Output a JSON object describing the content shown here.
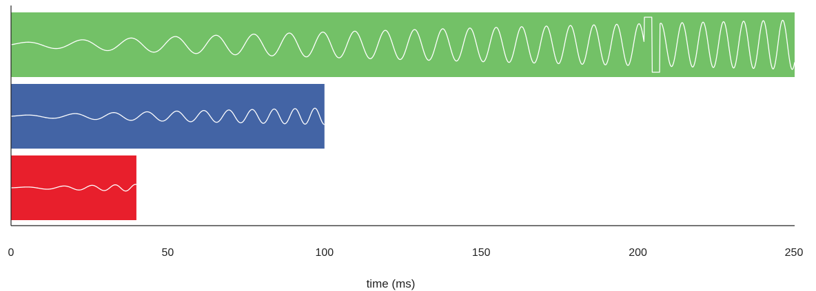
{
  "chart_data": {
    "type": "bar",
    "orientation": "horizontal",
    "xlabel": "time (ms)",
    "ylabel": "",
    "xlim": [
      0,
      250
    ],
    "xticks": [
      0,
      50,
      100,
      150,
      200,
      250
    ],
    "grid": false,
    "legend": "none",
    "bars": [
      {
        "duration_ms": 250,
        "color": "#73c167",
        "waveform": "sine-chirp",
        "artifact_ms": [
          202,
          207
        ]
      },
      {
        "duration_ms": 100,
        "color": "#4364a5",
        "waveform": "sine-chirp"
      },
      {
        "duration_ms": 40,
        "color": "#e81f2c",
        "waveform": "sine-chirp"
      }
    ]
  }
}
